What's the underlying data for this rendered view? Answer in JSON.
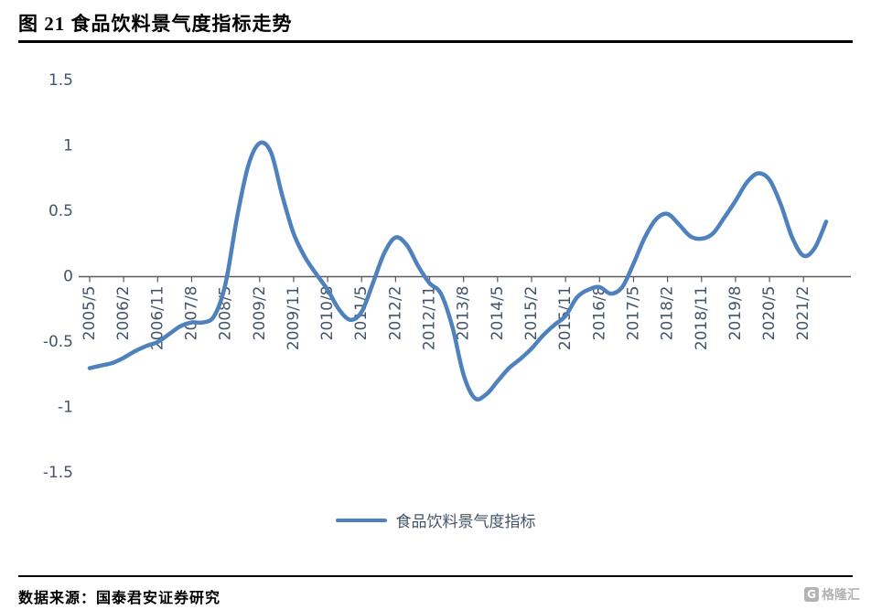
{
  "header": {
    "title": "图 21  食品饮料景气度指标走势"
  },
  "footer": {
    "source": "数据来源：国泰君安证券研究",
    "watermark_icon": "G",
    "watermark_text": "格隆汇"
  },
  "legend": {
    "label": "食品饮料景气度指标"
  },
  "colors": {
    "line": "#4F81BD",
    "axis_text": "#44546A",
    "axis_line": "#595959"
  },
  "chart_data": {
    "type": "line",
    "title": "食品饮料景气度指标走势",
    "xlabel": "",
    "ylabel": "",
    "ylim": [
      -1.5,
      1.5
    ],
    "yticks": [
      1.5,
      1,
      0.5,
      0,
      -0.5,
      -1,
      -1.5
    ],
    "grid": false,
    "legend_position": "bottom",
    "x_tick_labels": [
      "2005/5",
      "2006/2",
      "2006/11",
      "2007/8",
      "2008/5",
      "2009/2",
      "2009/11",
      "2010/8",
      "2011/5",
      "2012/2",
      "2012/11",
      "2013/8",
      "2014/5",
      "2015/2",
      "2015/11",
      "2016/8",
      "2017/5",
      "2018/2",
      "2018/11",
      "2019/8",
      "2020/5",
      "2021/2"
    ],
    "series": [
      {
        "name": "食品饮料景气度指标",
        "x": [
          "2005/5",
          "2005/8",
          "2005/11",
          "2006/2",
          "2006/5",
          "2006/8",
          "2006/11",
          "2007/2",
          "2007/5",
          "2007/8",
          "2007/11",
          "2008/2",
          "2008/5",
          "2008/8",
          "2008/11",
          "2009/2",
          "2009/5",
          "2009/8",
          "2009/11",
          "2010/2",
          "2010/5",
          "2010/8",
          "2010/11",
          "2011/2",
          "2011/5",
          "2011/8",
          "2011/11",
          "2012/2",
          "2012/5",
          "2012/8",
          "2012/11",
          "2013/2",
          "2013/5",
          "2013/8",
          "2013/11",
          "2014/2",
          "2014/5",
          "2014/8",
          "2014/11",
          "2015/2",
          "2015/5",
          "2015/8",
          "2015/11",
          "2016/2",
          "2016/5",
          "2016/8",
          "2016/11",
          "2017/2",
          "2017/5",
          "2017/8",
          "2017/11",
          "2018/2",
          "2018/5",
          "2018/8",
          "2018/11",
          "2019/2",
          "2019/5",
          "2019/8",
          "2019/11",
          "2020/2",
          "2020/5",
          "2020/8",
          "2020/11",
          "2021/2",
          "2021/5",
          "2021/8"
        ],
        "values": [
          -0.7,
          -0.68,
          -0.66,
          -0.62,
          -0.57,
          -0.53,
          -0.5,
          -0.44,
          -0.38,
          -0.35,
          -0.35,
          -0.3,
          -0.05,
          0.45,
          0.85,
          1.02,
          0.95,
          0.62,
          0.33,
          0.15,
          0.02,
          -0.1,
          -0.25,
          -0.33,
          -0.27,
          -0.05,
          0.18,
          0.3,
          0.24,
          0.08,
          -0.05,
          -0.13,
          -0.38,
          -0.75,
          -0.93,
          -0.9,
          -0.8,
          -0.7,
          -0.63,
          -0.55,
          -0.45,
          -0.37,
          -0.3,
          -0.16,
          -0.1,
          -0.08,
          -0.13,
          -0.08,
          0.1,
          0.3,
          0.44,
          0.48,
          0.4,
          0.31,
          0.29,
          0.33,
          0.45,
          0.58,
          0.72,
          0.79,
          0.74,
          0.55,
          0.3,
          0.16,
          0.22,
          0.42
        ]
      }
    ]
  }
}
